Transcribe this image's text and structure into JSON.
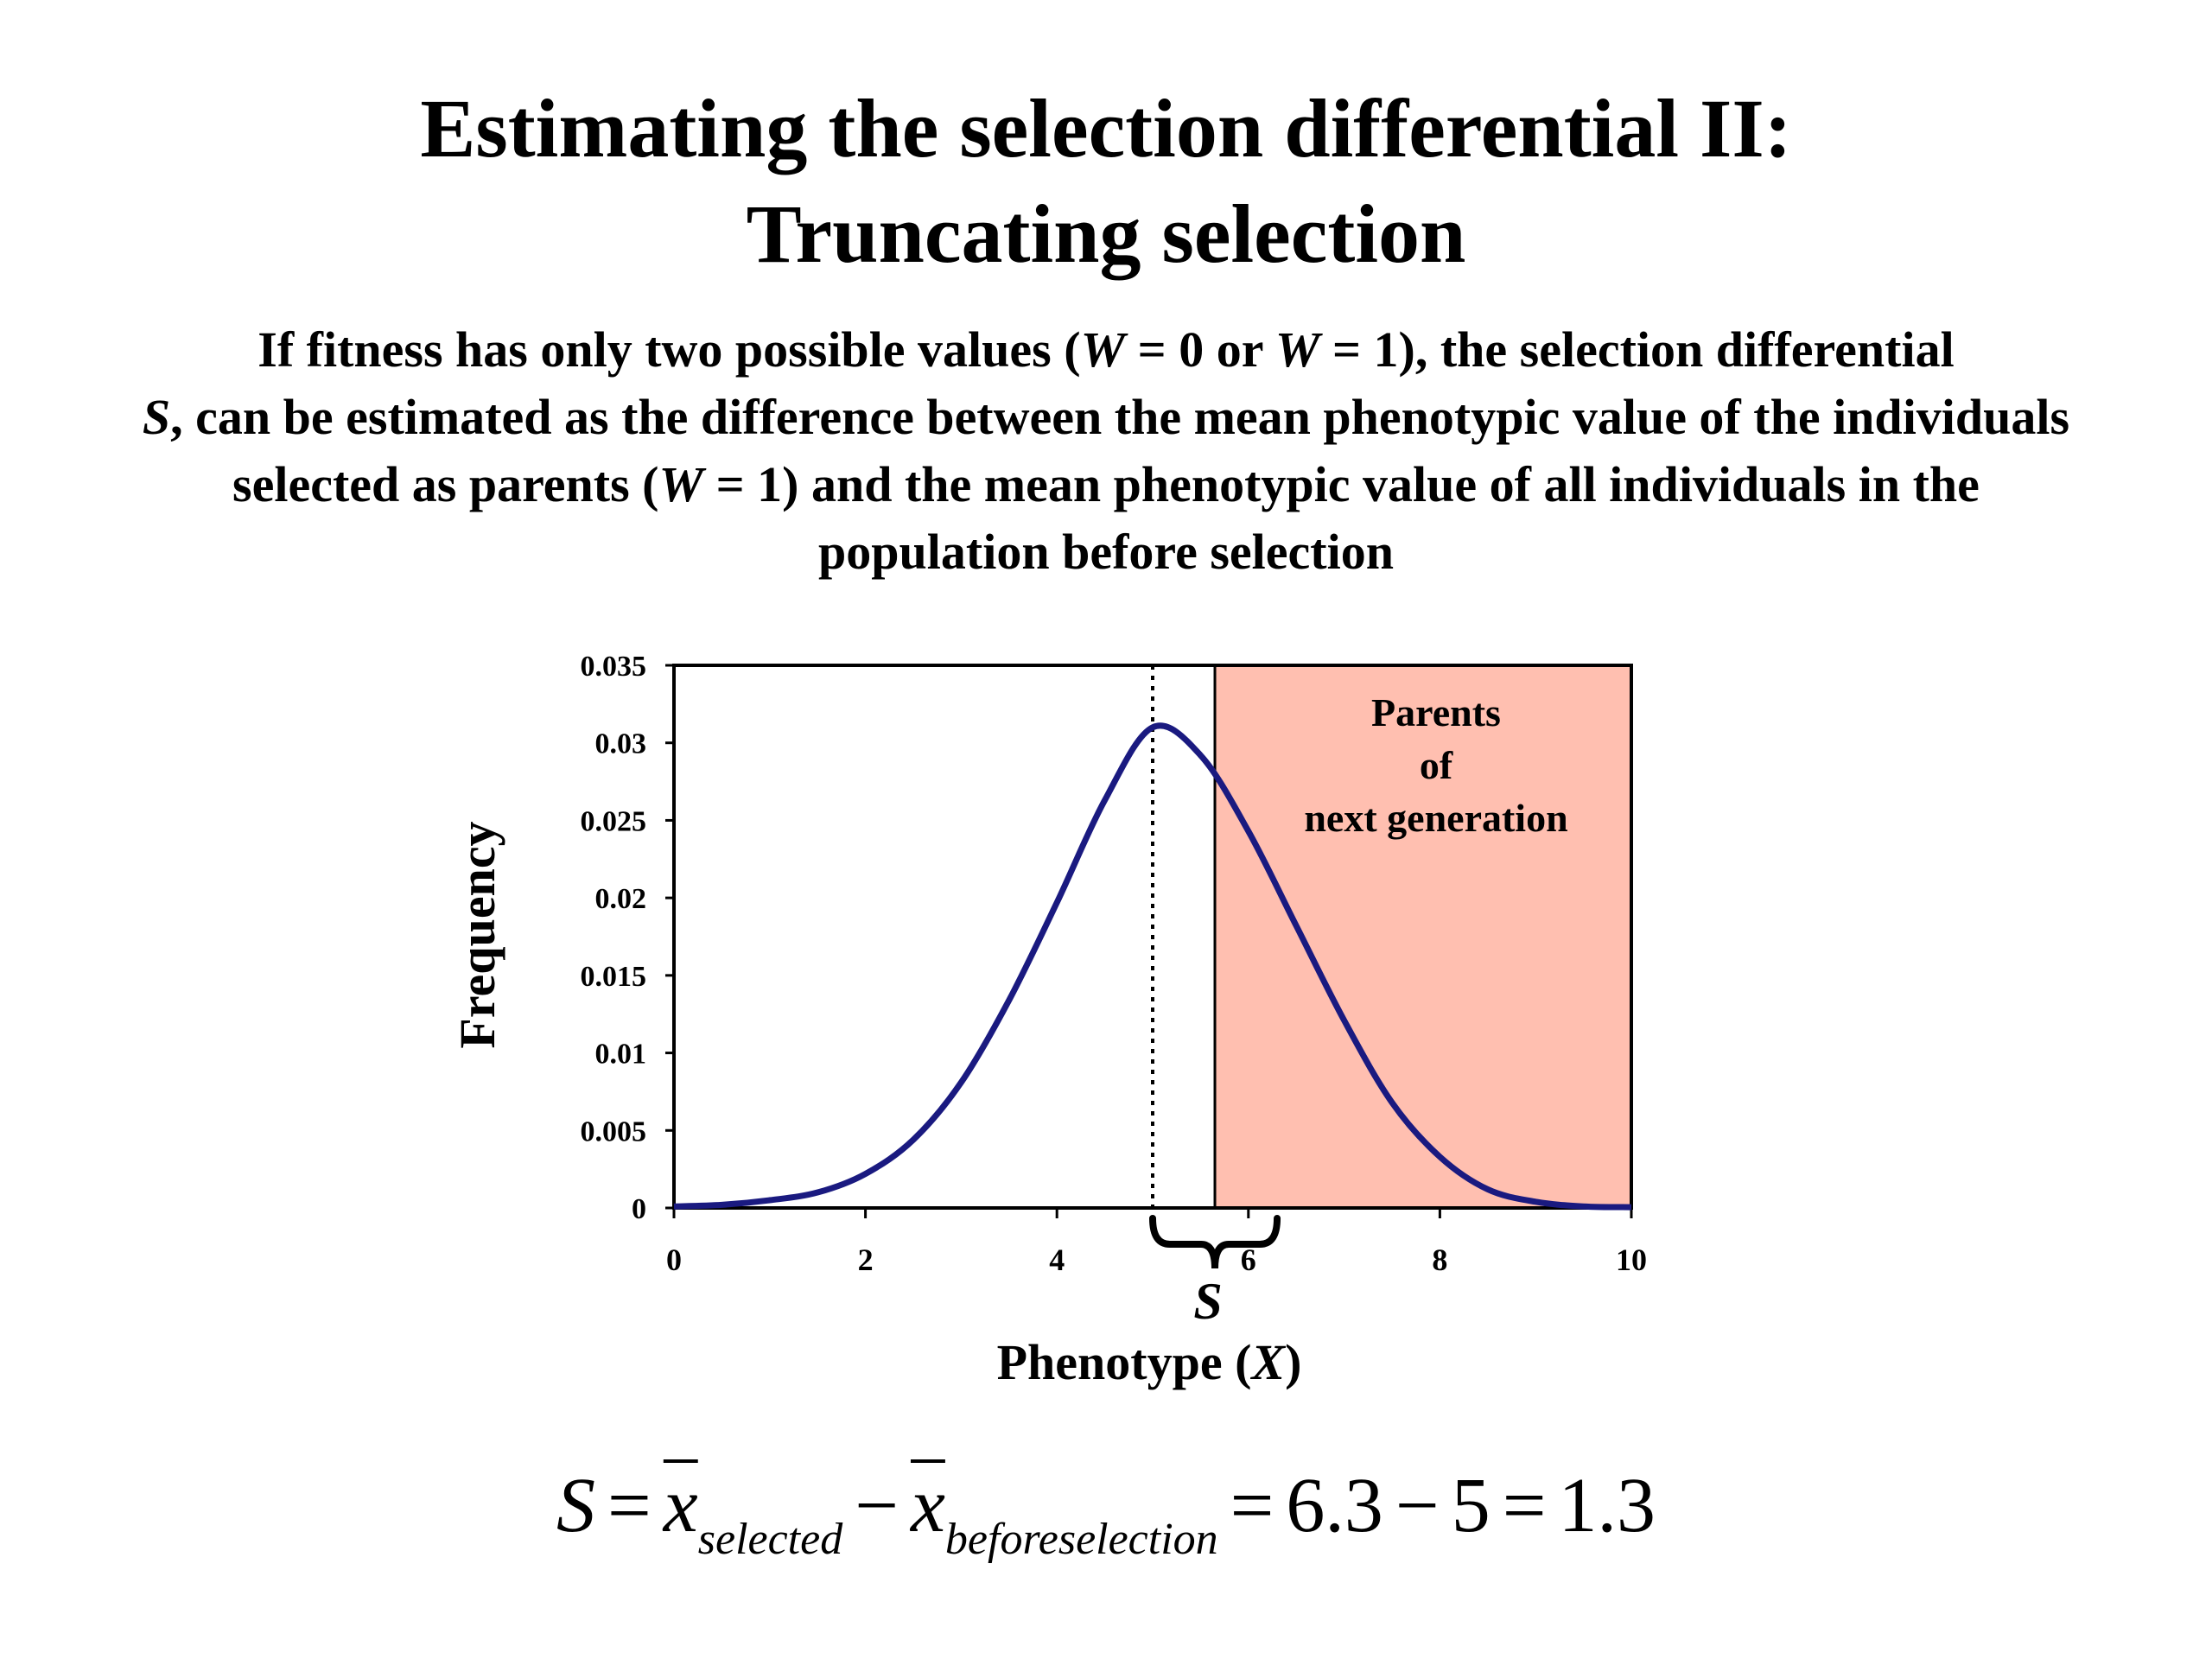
{
  "slide": {
    "title_line1": "Estimating the selection differential II:",
    "title_line2": "Truncating selection",
    "body": {
      "p1": "If fitness has only two possible values (",
      "W1": "W",
      "p2": " = 0 or ",
      "W2": "W",
      "p3": " = 1), the selection differential",
      "S": "S",
      "p4": ", can be estimated as the difference between the mean phenotypic value of the individuals selected as parents (",
      "W3": "W",
      "p5": " = 1) and the mean phenotypic value of all individuals in the population before selection"
    }
  },
  "chart_data": {
    "type": "line",
    "xlabel": "Phenotype (",
    "xlabel_var": "X",
    "xlabel_close": ")",
    "ylabel": "Frequency",
    "xlim": [
      0,
      10
    ],
    "ylim": [
      0,
      0.035
    ],
    "x_ticks": [
      "0",
      "2",
      "4",
      "6",
      "8",
      "10"
    ],
    "y_ticks": [
      "0",
      "0.005",
      "0.01",
      "0.015",
      "0.02",
      "0.025",
      "0.03",
      "0.035"
    ],
    "series": [
      {
        "color": "#1a1a80",
        "x": [
          0,
          0.5,
          1.0,
          1.5,
          2.0,
          2.5,
          3.0,
          3.5,
          4.0,
          4.5,
          5.0,
          5.5,
          6.0,
          6.5,
          7.0,
          7.5,
          8.0,
          8.5,
          9.0,
          9.5,
          10.0
        ],
        "y": [
          0.0001,
          0.0002,
          0.0005,
          0.001,
          0.0022,
          0.0044,
          0.0081,
          0.0134,
          0.0197,
          0.0263,
          0.031,
          0.0292,
          0.0243,
          0.0182,
          0.0121,
          0.0068,
          0.0033,
          0.0012,
          0.0004,
          0.0001,
          5e-05
        ]
      }
    ],
    "mean_line_x": 5.0,
    "truncation_x": 5.65,
    "selected_region_color": "#ffbfb0",
    "selected_region_label": [
      "Parents",
      "of",
      "next generation"
    ],
    "brace": {
      "from_x": 5.0,
      "to_x": 6.3,
      "label": "S"
    }
  },
  "formula": {
    "S": "S",
    "eq1": "=",
    "xbar": "x",
    "sub_selected": "selected",
    "minus1": "−",
    "sub_before": "beforeselection",
    "eq2": "=",
    "v1": "6.3",
    "minus2": "−",
    "v2": "5",
    "eq3": "=",
    "result": "1.3"
  }
}
